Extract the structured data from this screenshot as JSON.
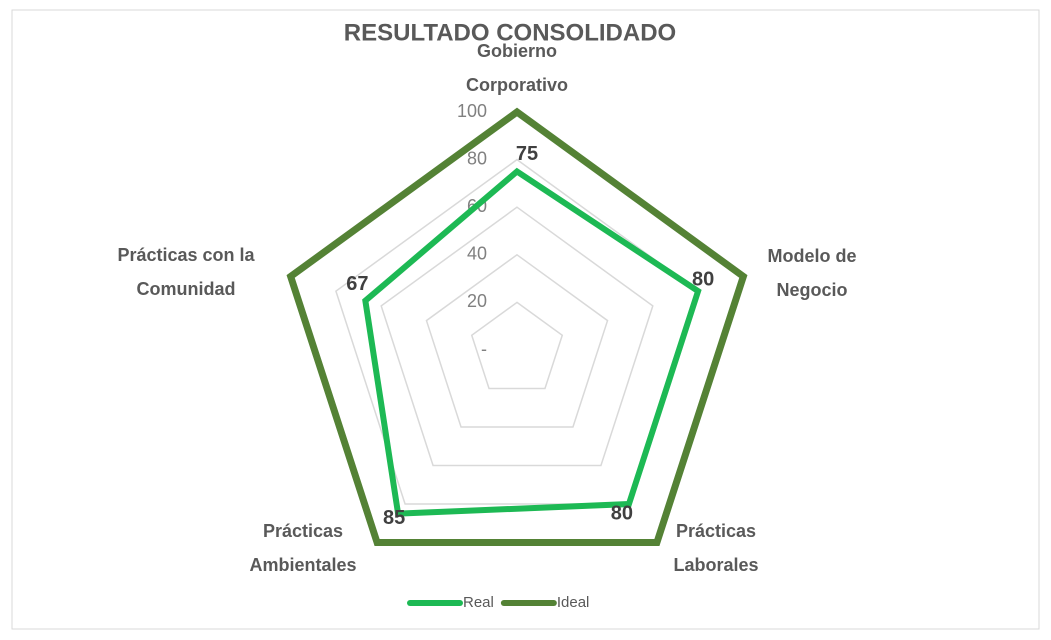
{
  "chart_data": {
    "type": "radar",
    "title": "RESULTADO CONSOLIDADO",
    "categories": [
      "Gobierno Corporativo",
      "Modelo de Negocio",
      "Prácticas Laborales",
      "Prácticas Ambientales",
      "Prácticas con la Comunidad"
    ],
    "series": [
      {
        "name": "Real",
        "color": "#1db954",
        "values": [
          75,
          80,
          80,
          85,
          67
        ]
      },
      {
        "name": "Ideal",
        "color": "#548235",
        "values": [
          100,
          100,
          100,
          100,
          100
        ]
      }
    ],
    "data_labels_series": "Real",
    "ylim": [
      0,
      100
    ],
    "yticks": [
      {
        "value": 0,
        "label": "-"
      },
      20,
      40,
      60,
      80,
      100
    ],
    "grid": true,
    "legend": "bottom"
  }
}
